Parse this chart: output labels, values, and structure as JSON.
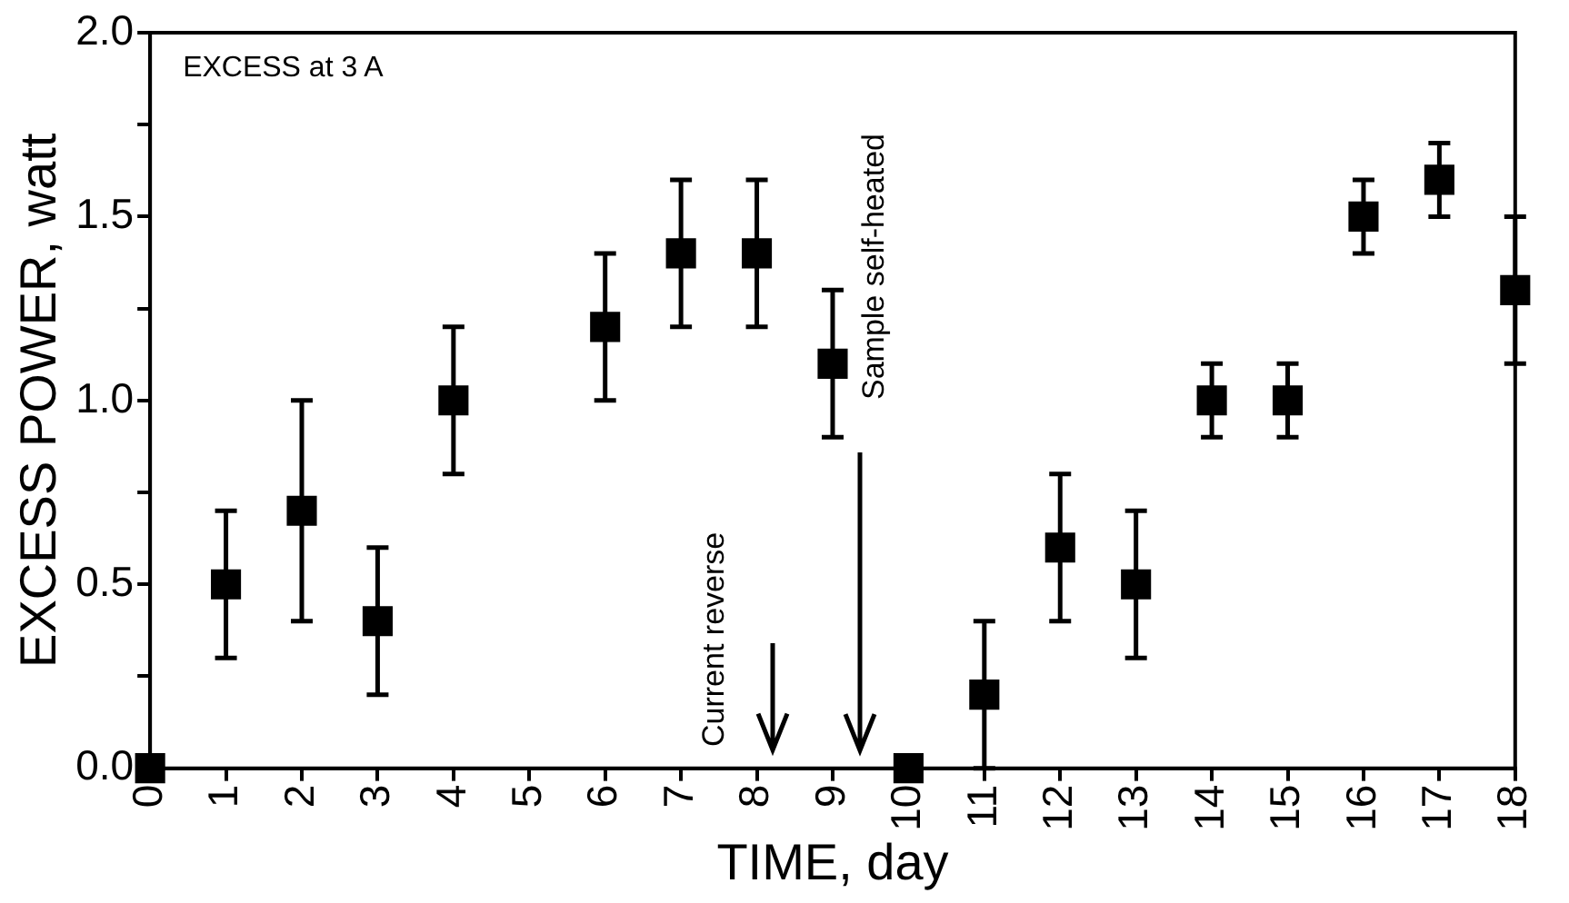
{
  "chart_data": {
    "type": "scatter",
    "xlabel": "TIME, day",
    "ylabel": "EXCESS POWER, watt",
    "x": [
      0,
      1,
      2,
      3,
      4,
      6,
      7,
      8,
      9,
      10,
      11,
      12,
      13,
      14,
      15,
      16,
      17,
      18
    ],
    "series": [
      {
        "color": "#000000",
        "values": [
          0,
          0.5,
          0.7,
          0.4,
          1.0,
          1.2,
          1.4,
          1.4,
          1.1,
          0,
          0.2,
          0.6,
          0.5,
          1.0,
          1.0,
          1.5,
          1.6,
          1.3
        ],
        "errors": [
          null,
          [
            0.3,
            0.7
          ],
          [
            0.4,
            1.0
          ],
          [
            0.2,
            0.6
          ],
          [
            0.8,
            1.2
          ],
          [
            1.0,
            1.4
          ],
          [
            1.2,
            1.6
          ],
          [
            1.2,
            1.6
          ],
          [
            0.9,
            1.3
          ],
          null,
          [
            0,
            0.4
          ],
          [
            0.4,
            0.8
          ],
          [
            0.3,
            0.7
          ],
          [
            0.9,
            1.1
          ],
          [
            0.9,
            1.1
          ],
          [
            1.4,
            1.6
          ],
          [
            1.5,
            1.7
          ],
          [
            1.1,
            1.5
          ]
        ]
      }
    ],
    "xlim": [
      0,
      18
    ],
    "xticks": [
      0,
      1,
      2,
      3,
      4,
      5,
      6,
      7,
      8,
      9,
      10,
      11,
      12,
      13,
      14,
      15,
      16,
      17,
      18
    ],
    "ylim": [
      0,
      2
    ],
    "yticks": [
      {
        "value": 0,
        "label": "0.0"
      },
      {
        "value": 0.25,
        "label": null
      },
      0.5,
      {
        "value": 0.75,
        "label": null
      },
      {
        "value": 1,
        "label": "1.0"
      },
      {
        "value": 1.25,
        "label": null
      },
      1.5,
      {
        "value": 1.75,
        "label": null
      },
      {
        "value": 2,
        "label": "2.0"
      }
    ],
    "marker": "square",
    "grid": false,
    "legend": false,
    "annotations": [
      "EXCESS at 3 A",
      "Current reverse",
      "Sample self-heated"
    ]
  }
}
